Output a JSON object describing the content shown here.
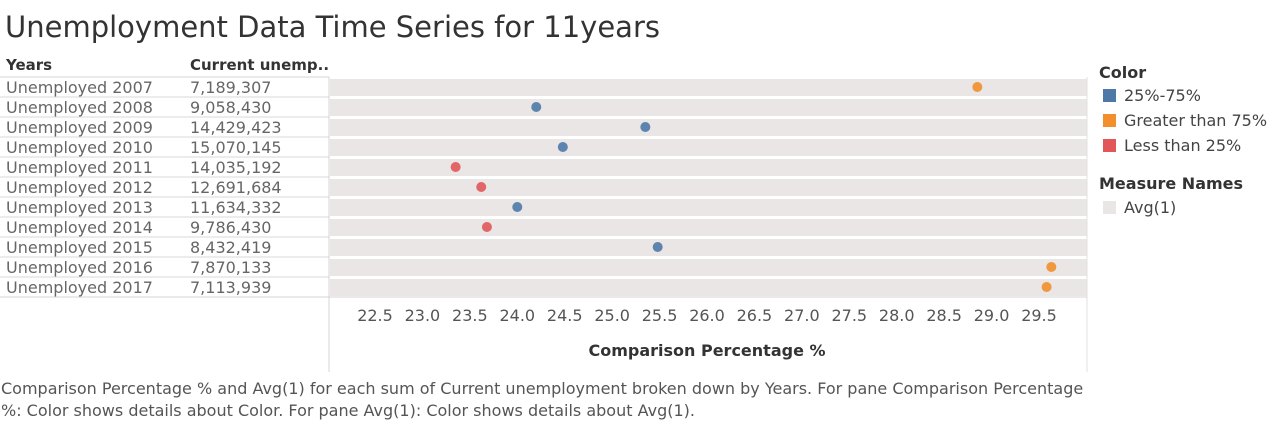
{
  "title": "Unemployment Data Time Series for 11years",
  "headers": {
    "years": "Years",
    "current": "Current unemp.."
  },
  "chart_data": {
    "type": "scatter",
    "xlabel": "Comparison Percentage %",
    "xlim": [
      22.0,
      30.0
    ],
    "xticks": [
      "22.5",
      "23.0",
      "23.5",
      "24.0",
      "24.5",
      "25.0",
      "25.5",
      "26.0",
      "26.5",
      "27.0",
      "27.5",
      "28.0",
      "28.5",
      "29.0",
      "29.5"
    ],
    "rows": [
      {
        "year": "Unemployed 2007",
        "current": "7,189,307",
        "pct": 28.85,
        "color_group": "Greater than 75%"
      },
      {
        "year": "Unemployed 2008",
        "current": "9,058,430",
        "pct": 24.2,
        "color_group": "25%-75%"
      },
      {
        "year": "Unemployed 2009",
        "current": "14,429,423",
        "pct": 25.35,
        "color_group": "25%-75%"
      },
      {
        "year": "Unemployed 2010",
        "current": "15,070,145",
        "pct": 24.48,
        "color_group": "25%-75%"
      },
      {
        "year": "Unemployed 2011",
        "current": "14,035,192",
        "pct": 23.35,
        "color_group": "Less than 25%"
      },
      {
        "year": "Unemployed 2012",
        "current": "12,691,684",
        "pct": 23.62,
        "color_group": "Less than 25%"
      },
      {
        "year": "Unemployed 2013",
        "current": "11,634,332",
        "pct": 24.0,
        "color_group": "25%-75%"
      },
      {
        "year": "Unemployed 2014",
        "current": "9,786,430",
        "pct": 23.68,
        "color_group": "Less than 25%"
      },
      {
        "year": "Unemployed 2015",
        "current": "8,432,419",
        "pct": 25.48,
        "color_group": "25%-75%"
      },
      {
        "year": "Unemployed 2016",
        "current": "7,870,133",
        "pct": 29.63,
        "color_group": "Greater than 75%"
      },
      {
        "year": "Unemployed 2017",
        "current": "7,113,939",
        "pct": 29.58,
        "color_group": "Greater than 75%"
      }
    ],
    "avg_measure_value": 1,
    "grid": false
  },
  "legend": {
    "color_title": "Color",
    "color_items": [
      {
        "label": "25%-75%",
        "color": "#4e79a7"
      },
      {
        "label": "Greater than 75%",
        "color": "#f28e2b"
      },
      {
        "label": "Less than 25%",
        "color": "#e15759"
      }
    ],
    "measure_title": "Measure Names",
    "measure_items": [
      {
        "label": "Avg(1)",
        "color": "#e9e6e5"
      }
    ]
  },
  "caption": "Comparison Percentage % and Avg(1) for each sum of Current unemployment broken down by Years.  For pane Comparison Percentage %:  Color shows details about Color.  For pane Avg(1):  Color shows details about Avg(1)."
}
